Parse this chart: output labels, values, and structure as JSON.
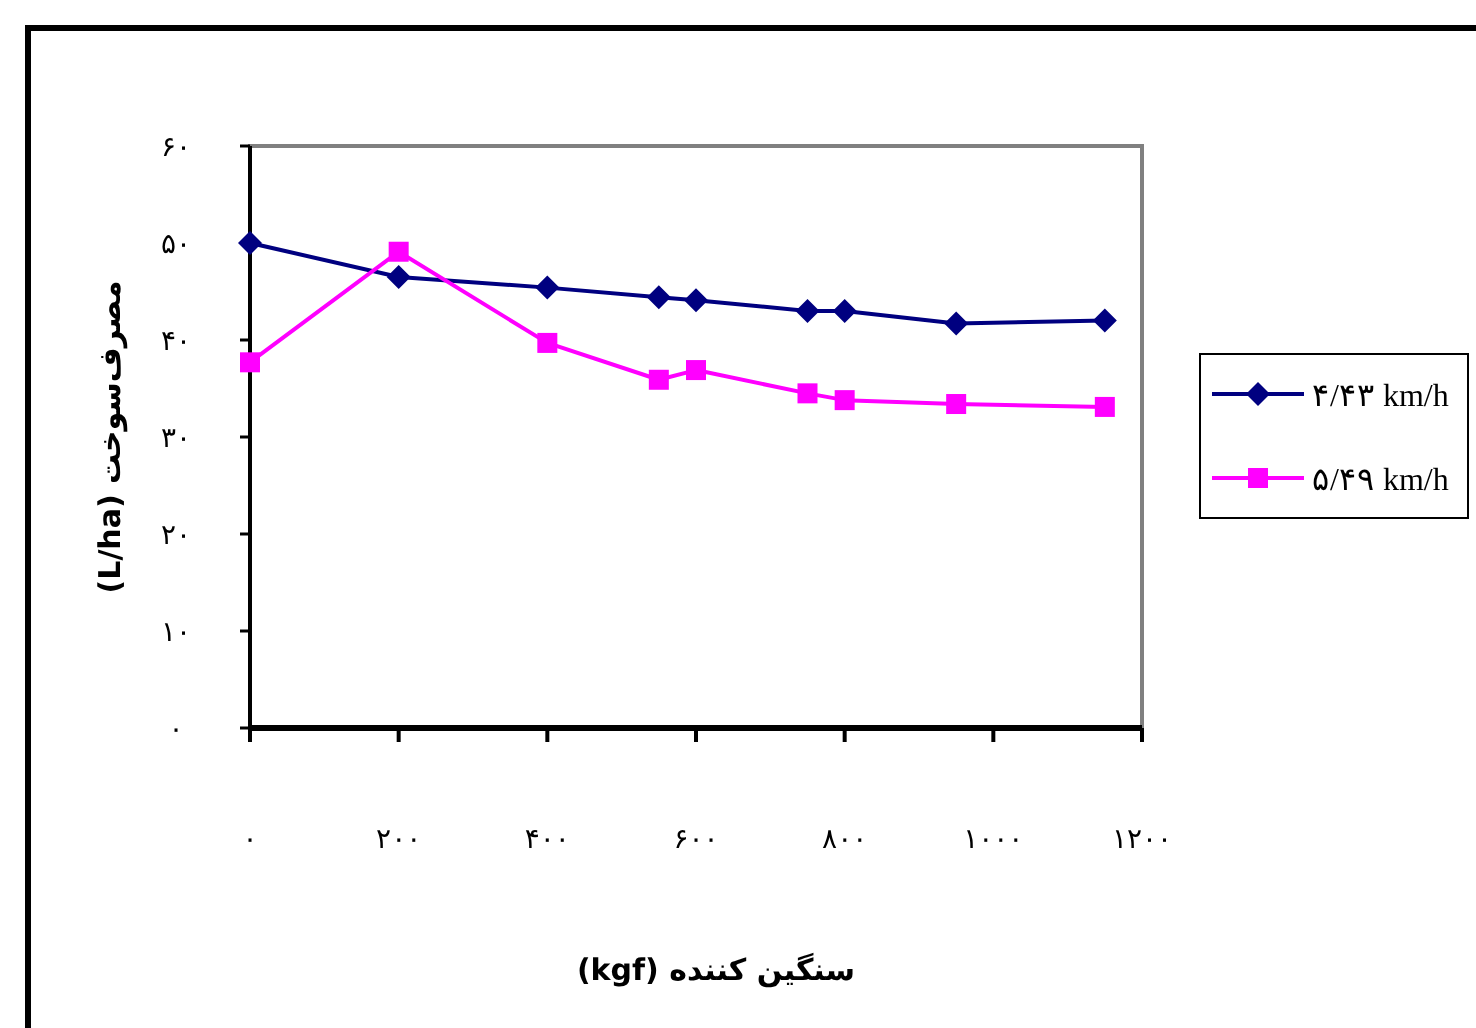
{
  "chart_data": {
    "type": "line",
    "xlabel": "سنگین کننده (kgf)",
    "ylabel": "مصرف‌سوخت (L/ha)",
    "x": [
      0,
      200,
      400,
      550,
      600,
      750,
      800,
      950,
      1150
    ],
    "series": [
      {
        "name": "۴/۴۳ km/h",
        "color": "#000080",
        "marker": "diamond",
        "values": [
          50.0,
          46.5,
          45.4,
          44.4,
          44.1,
          43.0,
          43.0,
          41.7,
          42.0
        ]
      },
      {
        "name": "۵/۴۹ km/h",
        "color": "#ff00ff",
        "marker": "square",
        "values": [
          37.7,
          49.1,
          39.7,
          35.9,
          36.9,
          34.5,
          33.8,
          33.4,
          33.1
        ]
      }
    ],
    "xlim": [
      0,
      1200
    ],
    "ylim": [
      0,
      60
    ],
    "xticks": [
      {
        "value": 0,
        "label": "۰"
      },
      {
        "value": 200,
        "label": "۲۰۰"
      },
      {
        "value": 400,
        "label": "۴۰۰"
      },
      {
        "value": 600,
        "label": "۶۰۰"
      },
      {
        "value": 800,
        "label": "۸۰۰"
      },
      {
        "value": 1000,
        "label": "۱۰۰۰"
      },
      {
        "value": 1200,
        "label": "۱۲۰۰"
      }
    ],
    "yticks": [
      {
        "value": 0,
        "label": "۰"
      },
      {
        "value": 10,
        "label": "۱۰"
      },
      {
        "value": 20,
        "label": "۲۰"
      },
      {
        "value": 30,
        "label": "۳۰"
      },
      {
        "value": 40,
        "label": "۴۰"
      },
      {
        "value": 50,
        "label": "۵۰"
      },
      {
        "value": 60,
        "label": "۶۰"
      }
    ],
    "grid": false,
    "legend": "right",
    "line_style": "solid"
  }
}
